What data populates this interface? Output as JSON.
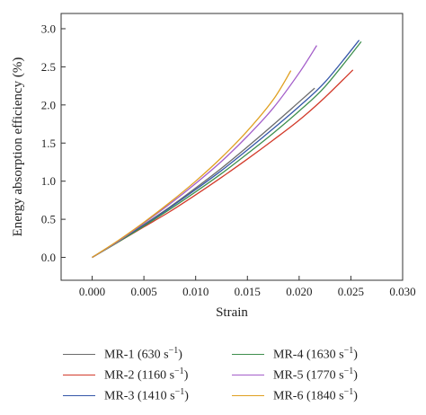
{
  "chart_data": {
    "type": "line",
    "xlabel": "Strain",
    "ylabel": "Energy absorption efficiency (%)",
    "xlim": [
      -0.003,
      0.03
    ],
    "ylim": [
      -0.3,
      3.2
    ],
    "xticks": [
      "0.000",
      "0.005",
      "0.010",
      "0.015",
      "0.020",
      "0.025",
      "0.030"
    ],
    "yticks": [
      "0.0",
      "0.5",
      "1.0",
      "1.5",
      "2.0",
      "2.5",
      "3.0"
    ],
    "grid": false,
    "legend_position": "bottom",
    "series": [
      {
        "name": "MR-1 (630 s",
        "name_sup": "−1",
        "name_end": ")",
        "color": "#6b6b6b",
        "x": [
          0.0,
          0.0025,
          0.005,
          0.0075,
          0.01,
          0.0125,
          0.015,
          0.0175,
          0.02,
          0.0215
        ],
        "y": [
          0.0,
          0.21,
          0.43,
          0.66,
          0.91,
          1.17,
          1.45,
          1.74,
          2.04,
          2.22
        ]
      },
      {
        "name": "MR-2 (1160 s",
        "name_sup": "−1",
        "name_end": ")",
        "color": "#d23a2a",
        "x": [
          0.0,
          0.0025,
          0.005,
          0.0075,
          0.01,
          0.0125,
          0.015,
          0.0175,
          0.02,
          0.0225,
          0.0252
        ],
        "y": [
          0.0,
          0.2,
          0.4,
          0.6,
          0.82,
          1.05,
          1.29,
          1.54,
          1.8,
          2.1,
          2.46
        ]
      },
      {
        "name": "MR-3 (1410 s",
        "name_sup": "−1",
        "name_end": ")",
        "color": "#3456a8",
        "x": [
          0.0,
          0.0025,
          0.005,
          0.0075,
          0.01,
          0.0125,
          0.015,
          0.0175,
          0.02,
          0.0225,
          0.0258
        ],
        "y": [
          0.0,
          0.21,
          0.42,
          0.65,
          0.89,
          1.14,
          1.41,
          1.69,
          1.98,
          2.3,
          2.85
        ]
      },
      {
        "name": "MR-4 (1630 s",
        "name_sup": "−1",
        "name_end": ")",
        "color": "#3e8f4e",
        "x": [
          0.0,
          0.0025,
          0.005,
          0.0075,
          0.01,
          0.0125,
          0.015,
          0.0175,
          0.02,
          0.0225,
          0.026
        ],
        "y": [
          0.0,
          0.2,
          0.41,
          0.63,
          0.86,
          1.1,
          1.36,
          1.63,
          1.92,
          2.24,
          2.83
        ]
      },
      {
        "name": "MR-5 (1770 s",
        "name_sup": "−1",
        "name_end": ")",
        "color": "#a35dc9",
        "x": [
          0.0,
          0.0025,
          0.005,
          0.0075,
          0.01,
          0.0125,
          0.015,
          0.0175,
          0.02,
          0.0217
        ],
        "y": [
          0.0,
          0.21,
          0.45,
          0.7,
          0.97,
          1.26,
          1.59,
          1.96,
          2.42,
          2.78
        ]
      },
      {
        "name": "MR-6 (1840 s",
        "name_sup": "−1",
        "name_end": ")",
        "color": "#e0a020",
        "x": [
          0.0,
          0.0025,
          0.005,
          0.0075,
          0.01,
          0.0125,
          0.015,
          0.0175,
          0.0192
        ],
        "y": [
          0.0,
          0.22,
          0.46,
          0.72,
          1.0,
          1.31,
          1.66,
          2.07,
          2.45
        ]
      }
    ]
  }
}
